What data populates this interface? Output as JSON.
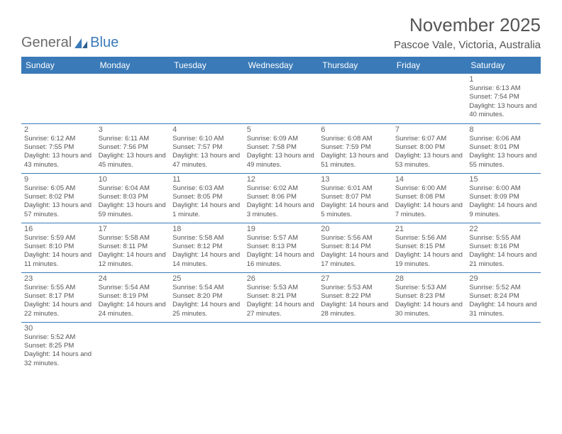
{
  "logo": {
    "word1": "General",
    "word2": "Blue"
  },
  "title": "November 2025",
  "location": "Pascoe Vale, Victoria, Australia",
  "colors": {
    "accent": "#3a7ab8",
    "text": "#555555",
    "bg": "#ffffff"
  },
  "dayHeaders": [
    "Sunday",
    "Monday",
    "Tuesday",
    "Wednesday",
    "Thursday",
    "Friday",
    "Saturday"
  ],
  "weeks": [
    [
      null,
      null,
      null,
      null,
      null,
      null,
      {
        "n": "1",
        "sr": "6:13 AM",
        "ss": "7:54 PM",
        "dl": "13 hours and 40 minutes."
      }
    ],
    [
      {
        "n": "2",
        "sr": "6:12 AM",
        "ss": "7:55 PM",
        "dl": "13 hours and 43 minutes."
      },
      {
        "n": "3",
        "sr": "6:11 AM",
        "ss": "7:56 PM",
        "dl": "13 hours and 45 minutes."
      },
      {
        "n": "4",
        "sr": "6:10 AM",
        "ss": "7:57 PM",
        "dl": "13 hours and 47 minutes."
      },
      {
        "n": "5",
        "sr": "6:09 AM",
        "ss": "7:58 PM",
        "dl": "13 hours and 49 minutes."
      },
      {
        "n": "6",
        "sr": "6:08 AM",
        "ss": "7:59 PM",
        "dl": "13 hours and 51 minutes."
      },
      {
        "n": "7",
        "sr": "6:07 AM",
        "ss": "8:00 PM",
        "dl": "13 hours and 53 minutes."
      },
      {
        "n": "8",
        "sr": "6:06 AM",
        "ss": "8:01 PM",
        "dl": "13 hours and 55 minutes."
      }
    ],
    [
      {
        "n": "9",
        "sr": "6:05 AM",
        "ss": "8:02 PM",
        "dl": "13 hours and 57 minutes."
      },
      {
        "n": "10",
        "sr": "6:04 AM",
        "ss": "8:03 PM",
        "dl": "13 hours and 59 minutes."
      },
      {
        "n": "11",
        "sr": "6:03 AM",
        "ss": "8:05 PM",
        "dl": "14 hours and 1 minute."
      },
      {
        "n": "12",
        "sr": "6:02 AM",
        "ss": "8:06 PM",
        "dl": "14 hours and 3 minutes."
      },
      {
        "n": "13",
        "sr": "6:01 AM",
        "ss": "8:07 PM",
        "dl": "14 hours and 5 minutes."
      },
      {
        "n": "14",
        "sr": "6:00 AM",
        "ss": "8:08 PM",
        "dl": "14 hours and 7 minutes."
      },
      {
        "n": "15",
        "sr": "6:00 AM",
        "ss": "8:09 PM",
        "dl": "14 hours and 9 minutes."
      }
    ],
    [
      {
        "n": "16",
        "sr": "5:59 AM",
        "ss": "8:10 PM",
        "dl": "14 hours and 11 minutes."
      },
      {
        "n": "17",
        "sr": "5:58 AM",
        "ss": "8:11 PM",
        "dl": "14 hours and 12 minutes."
      },
      {
        "n": "18",
        "sr": "5:58 AM",
        "ss": "8:12 PM",
        "dl": "14 hours and 14 minutes."
      },
      {
        "n": "19",
        "sr": "5:57 AM",
        "ss": "8:13 PM",
        "dl": "14 hours and 16 minutes."
      },
      {
        "n": "20",
        "sr": "5:56 AM",
        "ss": "8:14 PM",
        "dl": "14 hours and 17 minutes."
      },
      {
        "n": "21",
        "sr": "5:56 AM",
        "ss": "8:15 PM",
        "dl": "14 hours and 19 minutes."
      },
      {
        "n": "22",
        "sr": "5:55 AM",
        "ss": "8:16 PM",
        "dl": "14 hours and 21 minutes."
      }
    ],
    [
      {
        "n": "23",
        "sr": "5:55 AM",
        "ss": "8:17 PM",
        "dl": "14 hours and 22 minutes."
      },
      {
        "n": "24",
        "sr": "5:54 AM",
        "ss": "8:19 PM",
        "dl": "14 hours and 24 minutes."
      },
      {
        "n": "25",
        "sr": "5:54 AM",
        "ss": "8:20 PM",
        "dl": "14 hours and 25 minutes."
      },
      {
        "n": "26",
        "sr": "5:53 AM",
        "ss": "8:21 PM",
        "dl": "14 hours and 27 minutes."
      },
      {
        "n": "27",
        "sr": "5:53 AM",
        "ss": "8:22 PM",
        "dl": "14 hours and 28 minutes."
      },
      {
        "n": "28",
        "sr": "5:53 AM",
        "ss": "8:23 PM",
        "dl": "14 hours and 30 minutes."
      },
      {
        "n": "29",
        "sr": "5:52 AM",
        "ss": "8:24 PM",
        "dl": "14 hours and 31 minutes."
      }
    ],
    [
      {
        "n": "30",
        "sr": "5:52 AM",
        "ss": "8:25 PM",
        "dl": "14 hours and 32 minutes."
      },
      null,
      null,
      null,
      null,
      null,
      null
    ]
  ],
  "labels": {
    "sunrise": "Sunrise:",
    "sunset": "Sunset:",
    "daylight": "Daylight:"
  }
}
